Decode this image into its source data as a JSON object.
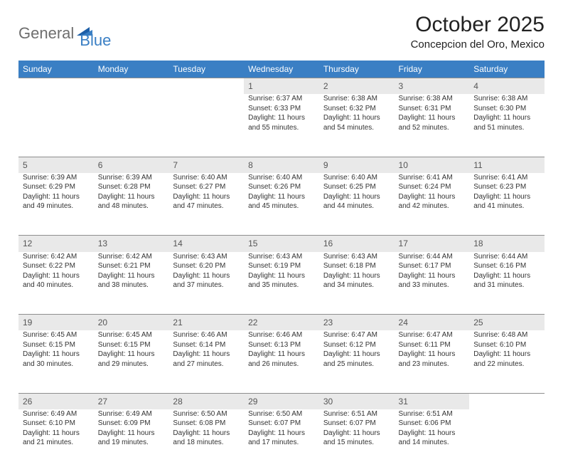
{
  "logo": {
    "word1": "General",
    "word2": "Blue"
  },
  "title": "October 2025",
  "location": "Concepcion del Oro, Mexico",
  "colors": {
    "header_bg": "#3a7fc4",
    "header_text": "#ffffff",
    "daynum_bg": "#e9e9e9",
    "daynum_text": "#555555",
    "body_text": "#333333",
    "logo_gray": "#6e6e6e",
    "logo_blue": "#3a7fc4"
  },
  "dayNames": [
    "Sunday",
    "Monday",
    "Tuesday",
    "Wednesday",
    "Thursday",
    "Friday",
    "Saturday"
  ],
  "weeks": [
    {
      "nums": [
        "",
        "",
        "",
        "1",
        "2",
        "3",
        "4"
      ],
      "cells": [
        null,
        null,
        null,
        {
          "sunrise": "6:37 AM",
          "sunset": "6:33 PM",
          "daylight": "11 hours and 55 minutes."
        },
        {
          "sunrise": "6:38 AM",
          "sunset": "6:32 PM",
          "daylight": "11 hours and 54 minutes."
        },
        {
          "sunrise": "6:38 AM",
          "sunset": "6:31 PM",
          "daylight": "11 hours and 52 minutes."
        },
        {
          "sunrise": "6:38 AM",
          "sunset": "6:30 PM",
          "daylight": "11 hours and 51 minutes."
        }
      ]
    },
    {
      "nums": [
        "5",
        "6",
        "7",
        "8",
        "9",
        "10",
        "11"
      ],
      "cells": [
        {
          "sunrise": "6:39 AM",
          "sunset": "6:29 PM",
          "daylight": "11 hours and 49 minutes."
        },
        {
          "sunrise": "6:39 AM",
          "sunset": "6:28 PM",
          "daylight": "11 hours and 48 minutes."
        },
        {
          "sunrise": "6:40 AM",
          "sunset": "6:27 PM",
          "daylight": "11 hours and 47 minutes."
        },
        {
          "sunrise": "6:40 AM",
          "sunset": "6:26 PM",
          "daylight": "11 hours and 45 minutes."
        },
        {
          "sunrise": "6:40 AM",
          "sunset": "6:25 PM",
          "daylight": "11 hours and 44 minutes."
        },
        {
          "sunrise": "6:41 AM",
          "sunset": "6:24 PM",
          "daylight": "11 hours and 42 minutes."
        },
        {
          "sunrise": "6:41 AM",
          "sunset": "6:23 PM",
          "daylight": "11 hours and 41 minutes."
        }
      ]
    },
    {
      "nums": [
        "12",
        "13",
        "14",
        "15",
        "16",
        "17",
        "18"
      ],
      "cells": [
        {
          "sunrise": "6:42 AM",
          "sunset": "6:22 PM",
          "daylight": "11 hours and 40 minutes."
        },
        {
          "sunrise": "6:42 AM",
          "sunset": "6:21 PM",
          "daylight": "11 hours and 38 minutes."
        },
        {
          "sunrise": "6:43 AM",
          "sunset": "6:20 PM",
          "daylight": "11 hours and 37 minutes."
        },
        {
          "sunrise": "6:43 AM",
          "sunset": "6:19 PM",
          "daylight": "11 hours and 35 minutes."
        },
        {
          "sunrise": "6:43 AM",
          "sunset": "6:18 PM",
          "daylight": "11 hours and 34 minutes."
        },
        {
          "sunrise": "6:44 AM",
          "sunset": "6:17 PM",
          "daylight": "11 hours and 33 minutes."
        },
        {
          "sunrise": "6:44 AM",
          "sunset": "6:16 PM",
          "daylight": "11 hours and 31 minutes."
        }
      ]
    },
    {
      "nums": [
        "19",
        "20",
        "21",
        "22",
        "23",
        "24",
        "25"
      ],
      "cells": [
        {
          "sunrise": "6:45 AM",
          "sunset": "6:15 PM",
          "daylight": "11 hours and 30 minutes."
        },
        {
          "sunrise": "6:45 AM",
          "sunset": "6:15 PM",
          "daylight": "11 hours and 29 minutes."
        },
        {
          "sunrise": "6:46 AM",
          "sunset": "6:14 PM",
          "daylight": "11 hours and 27 minutes."
        },
        {
          "sunrise": "6:46 AM",
          "sunset": "6:13 PM",
          "daylight": "11 hours and 26 minutes."
        },
        {
          "sunrise": "6:47 AM",
          "sunset": "6:12 PM",
          "daylight": "11 hours and 25 minutes."
        },
        {
          "sunrise": "6:47 AM",
          "sunset": "6:11 PM",
          "daylight": "11 hours and 23 minutes."
        },
        {
          "sunrise": "6:48 AM",
          "sunset": "6:10 PM",
          "daylight": "11 hours and 22 minutes."
        }
      ]
    },
    {
      "nums": [
        "26",
        "27",
        "28",
        "29",
        "30",
        "31",
        ""
      ],
      "cells": [
        {
          "sunrise": "6:49 AM",
          "sunset": "6:10 PM",
          "daylight": "11 hours and 21 minutes."
        },
        {
          "sunrise": "6:49 AM",
          "sunset": "6:09 PM",
          "daylight": "11 hours and 19 minutes."
        },
        {
          "sunrise": "6:50 AM",
          "sunset": "6:08 PM",
          "daylight": "11 hours and 18 minutes."
        },
        {
          "sunrise": "6:50 AM",
          "sunset": "6:07 PM",
          "daylight": "11 hours and 17 minutes."
        },
        {
          "sunrise": "6:51 AM",
          "sunset": "6:07 PM",
          "daylight": "11 hours and 15 minutes."
        },
        {
          "sunrise": "6:51 AM",
          "sunset": "6:06 PM",
          "daylight": "11 hours and 14 minutes."
        },
        null
      ]
    }
  ],
  "labels": {
    "sunrise": "Sunrise:",
    "sunset": "Sunset:",
    "daylight": "Daylight:"
  }
}
